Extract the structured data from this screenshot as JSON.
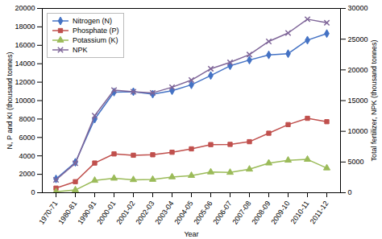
{
  "chart_data": {
    "type": "line",
    "xlabel": "Year",
    "ylabel": "N, P and KI (thousand tonnes)",
    "y2label": "Total fertilizer, NPK (thousand tonnes)",
    "categories": [
      "1970-71",
      "1980-81",
      "1990-91",
      "2000-01",
      "2001-02",
      "2002-03",
      "2003-04",
      "2004-05",
      "2005-06",
      "2006-07",
      "2007-08",
      "2008-09",
      "2009-10",
      "2010-11",
      "2011-12"
    ],
    "series": [
      {
        "name": "Nitrogen (N)",
        "color": "#4472c4",
        "marker": "diamond",
        "values": [
          1500,
          3300,
          7990,
          10920,
          10960,
          10700,
          11072,
          11713,
          12722,
          13773,
          14399,
          14958,
          15091,
          16558,
          17275
        ]
      },
      {
        "name": "Phosphate (P)",
        "color": "#c0504d",
        "marker": "square",
        "values": [
          500,
          1200,
          3222,
          4213,
          4070,
          4120,
          4394,
          4762,
          5224,
          5246,
          5540,
          6458,
          7394,
          8076,
          7710
        ]
      },
      {
        "name": "Potassium (K)",
        "color": "#9bbb59",
        "marker": "triangle",
        "values": [
          100,
          300,
          1329,
          1567,
          1408,
          1438,
          1709,
          1862,
          2239,
          2199,
          2549,
          3214,
          3519,
          3614,
          2680
        ]
      },
      {
        "name": "NPK",
        "color": "#7f6699",
        "marker": "x",
        "axis": "y2",
        "values": [
          2100,
          4800,
          12541,
          16700,
          16438,
          16258,
          17175,
          18337,
          20185,
          21218,
          22488,
          24630,
          26004,
          28248,
          27665
        ]
      }
    ],
    "ylim": [
      0,
      20000
    ],
    "yticks": [
      0,
      2000,
      4000,
      6000,
      8000,
      10000,
      12000,
      14000,
      16000,
      18000,
      20000
    ],
    "y2lim": [
      0,
      30000
    ],
    "y2ticks": [
      0,
      5000,
      10000,
      15000,
      20000,
      25000,
      30000
    ],
    "grid": false,
    "legend": "upper left"
  }
}
